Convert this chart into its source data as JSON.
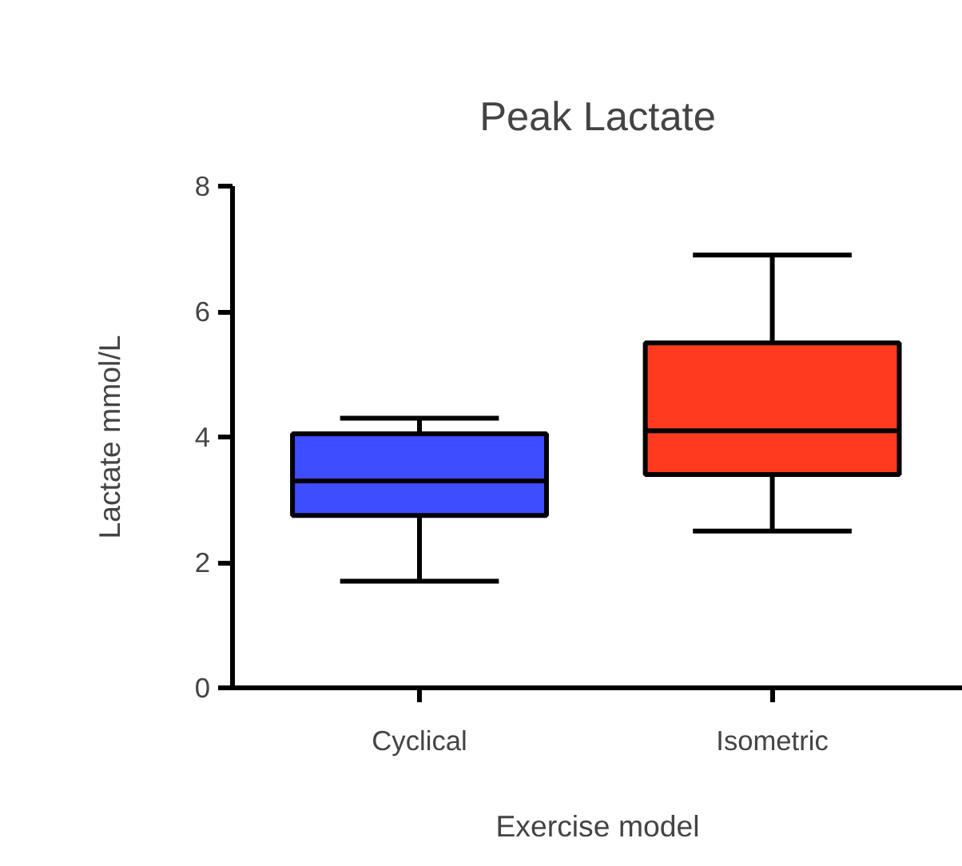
{
  "chart_data": {
    "type": "box",
    "title": "Peak Lactate",
    "xlabel": "Exercise model",
    "ylabel": "Lactate mmol/L",
    "categories": [
      "Cyclical",
      "Isometric"
    ],
    "boxes": [
      {
        "low": 1.7,
        "q1": 2.75,
        "median": 3.3,
        "q3": 4.05,
        "high": 4.3
      },
      {
        "low": 2.5,
        "q1": 3.4,
        "median": 4.1,
        "q3": 5.5,
        "high": 6.9
      }
    ],
    "colors": [
      "#3d4dff",
      "#ff3a1f"
    ],
    "ylim": [
      0,
      8
    ],
    "yticks": [
      0,
      2,
      4,
      6,
      8
    ],
    "grid": false
  }
}
